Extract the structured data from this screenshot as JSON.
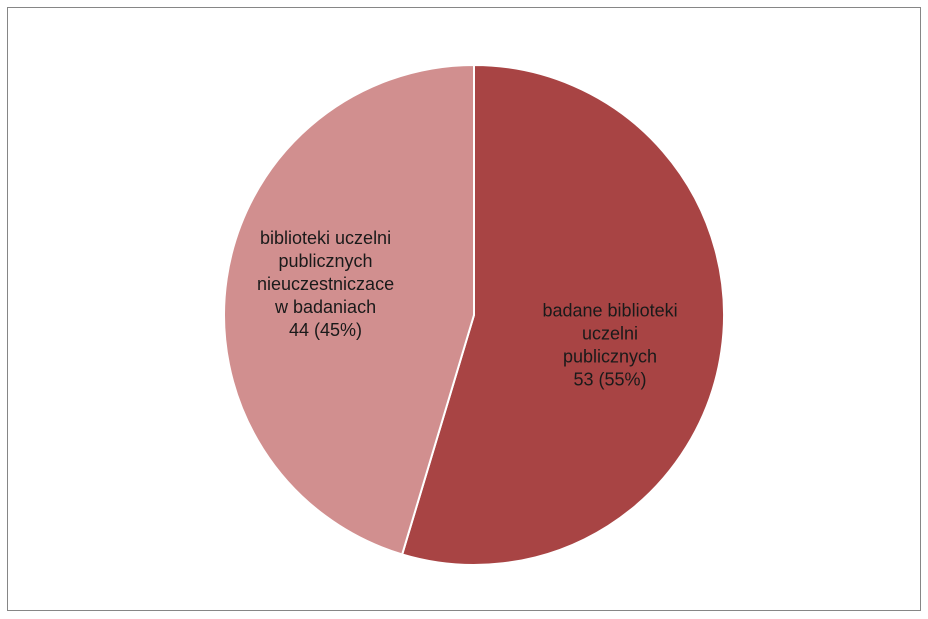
{
  "chart_data": {
    "type": "pie",
    "title": "",
    "series": [
      {
        "slices": [
          {
            "label": "badane biblioteki uczelni publicznych",
            "label_lines": [
              "badane biblioteki",
              "uczelni",
              "publicznych",
              "53 (55%)"
            ],
            "value": 53,
            "percent": 55,
            "color": "#a84444"
          },
          {
            "label": "biblioteki uczelni publicznych nieuczestniczace w badaniach",
            "label_lines": [
              "biblioteki uczelni",
              "publicznych",
              "nieuczestniczace",
              "w badaniach",
              "44 (45%)"
            ],
            "value": 44,
            "percent": 45,
            "color": "#d18f8f"
          }
        ]
      }
    ],
    "start_angle_deg": 0,
    "direction": "clockwise",
    "legend": "none",
    "slice_border_color": "#ffffff"
  }
}
